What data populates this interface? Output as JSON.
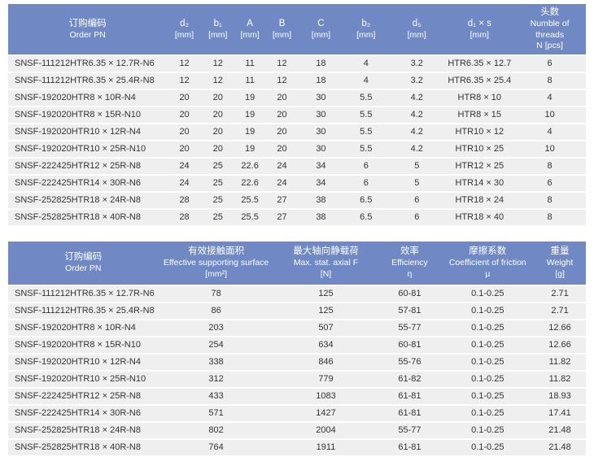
{
  "colors": {
    "header_background": "#7089c4",
    "header_text": "#ffffff",
    "row_background": "#efefef",
    "row_text": "#333333",
    "page_background": "#ffffff"
  },
  "tables": [
    {
      "name": "dimensions-table",
      "columns": [
        {
          "id": "order-pn",
          "align": "left",
          "lines": [
            "订购编码",
            "Order PN"
          ]
        },
        {
          "id": "d2",
          "align": "center",
          "lines": [
            "d₂",
            "[mm]"
          ]
        },
        {
          "id": "b1",
          "align": "center",
          "lines": [
            "b₁",
            "[mm]"
          ]
        },
        {
          "id": "a",
          "align": "center",
          "lines": [
            "A",
            "[mm]"
          ]
        },
        {
          "id": "b",
          "align": "center",
          "lines": [
            "B",
            "[mm]"
          ]
        },
        {
          "id": "c",
          "align": "center",
          "lines": [
            "C",
            "[mm]"
          ]
        },
        {
          "id": "b2",
          "align": "center",
          "lines": [
            "b₂",
            "[mm]"
          ]
        },
        {
          "id": "d5",
          "align": "center",
          "lines": [
            "d₅",
            "[mm]"
          ]
        },
        {
          "id": "d1xs",
          "align": "center",
          "lines": [
            "d₁ × s",
            "[mm]"
          ]
        },
        {
          "id": "threads",
          "align": "center",
          "lines": [
            "头数",
            "Numble of threads",
            "N [pcs]"
          ]
        }
      ],
      "rows": [
        [
          "SNSF-111212HTR6.35 × 12.7R-N6",
          "12",
          "12",
          "11",
          "12",
          "18",
          "4",
          "3.2",
          "HTR6.35 × 12.7",
          "6"
        ],
        [
          "SNSF-111212HTR6.35 × 25.4R-N8",
          "12",
          "12",
          "11",
          "12",
          "18",
          "4",
          "3.2",
          "HTR6.35 × 25.4",
          "8"
        ],
        [
          "SNSF-192020HTR8 × 10R-N4",
          "20",
          "20",
          "19",
          "20",
          "30",
          "5.5",
          "4.2",
          "HTR8 × 10",
          "4"
        ],
        [
          "SNSF-192020HTR8 × 15R-N10",
          "20",
          "20",
          "19",
          "20",
          "30",
          "5.5",
          "4.2",
          "HTR8 × 15",
          "10"
        ],
        [
          "SNSF-192020HTR10 × 12R-N4",
          "20",
          "20",
          "19",
          "20",
          "30",
          "5.5",
          "4.2",
          "HTR10 × 12",
          "4"
        ],
        [
          "SNSF-192020HTR10 × 25R-N10",
          "20",
          "20",
          "19",
          "20",
          "30",
          "5.5",
          "4.2",
          "HTR10 × 25",
          "10"
        ],
        [
          "SNSF-222425HTR12 × 25R-N8",
          "24",
          "25",
          "22.6",
          "24",
          "34",
          "6",
          "5",
          "HTR12 × 25",
          "8"
        ],
        [
          "SNSF-222425HTR14 × 30R-N6",
          "24",
          "25",
          "22.6",
          "24",
          "34",
          "6",
          "5",
          "HTR14 × 30",
          "6"
        ],
        [
          "SNSF-252825HTR18 × 24R-N8",
          "28",
          "25",
          "25.5",
          "27",
          "38",
          "6.5",
          "6",
          "HTR18 × 24",
          "8"
        ],
        [
          "SNSF-252825HTR18 × 40R-N8",
          "28",
          "25",
          "25.5",
          "27",
          "38",
          "6.5",
          "6",
          "HTR18 × 40",
          "8"
        ]
      ]
    },
    {
      "name": "performance-table",
      "columns": [
        {
          "id": "order-pn",
          "align": "left",
          "lines": [
            "订购编码",
            "Order PN"
          ]
        },
        {
          "id": "surface",
          "align": "center",
          "lines": [
            "有效接触面积",
            "Effective supporting surface",
            "[mm²]"
          ]
        },
        {
          "id": "axial-load",
          "align": "center",
          "lines": [
            "最大轴向静载荷",
            "Max. stat. axial F",
            "[N]"
          ]
        },
        {
          "id": "efficiency",
          "align": "center",
          "lines": [
            "效率",
            "Efficiency",
            "η"
          ]
        },
        {
          "id": "friction",
          "align": "center",
          "lines": [
            "摩擦系数",
            "Coefficient of friction",
            "μ"
          ]
        },
        {
          "id": "weight",
          "align": "center",
          "lines": [
            "重量",
            "Weight",
            "[g]"
          ]
        }
      ],
      "rows": [
        [
          "SNSF-111212HTR6.35 × 12.7R-N6",
          "78",
          "125",
          "60-81",
          "0.1-0.25",
          "2.71"
        ],
        [
          "SNSF-111212HTR6.35 × 25.4R-N8",
          "86",
          "125",
          "57-81",
          "0.1-0.25",
          "2.71"
        ],
        [
          "SNSF-192020HTR8 × 10R-N4",
          "203",
          "507",
          "55-77",
          "0.1-0.25",
          "12.66"
        ],
        [
          "SNSF-192020HTR8 × 15R-N10",
          "254",
          "634",
          "60-81",
          "0.1-0.25",
          "12.66"
        ],
        [
          "SNSF-192020HTR10 × 12R-N4",
          "338",
          "846",
          "55-76",
          "0.1-0.25",
          "11.82"
        ],
        [
          "SNSF-192020HTR10 × 25R-N10",
          "312",
          "779",
          "61-82",
          "0.1-0.25",
          "11.82"
        ],
        [
          "SNSF-222425HTR12 × 25R-N8",
          "433",
          "1083",
          "61-81",
          "0.1-0.25",
          "18.93"
        ],
        [
          "SNSF-222425HTR14 × 30R-N6",
          "571",
          "1427",
          "61-81",
          "0.1-0.25",
          "17.41"
        ],
        [
          "SNSF-252825HTR18 × 24R-N8",
          "802",
          "2004",
          "55-77",
          "0.1-0.25",
          "21.48"
        ],
        [
          "SNSF-252825HTR18 × 40R-N8",
          "764",
          "1911",
          "61-81",
          "0.1-0.25",
          "21.48"
        ]
      ]
    }
  ]
}
